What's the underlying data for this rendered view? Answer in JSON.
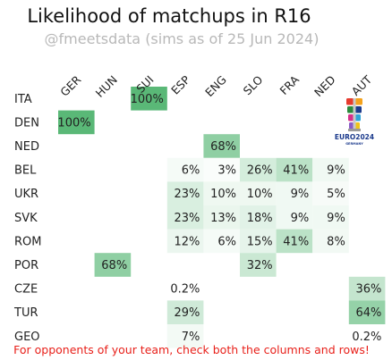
{
  "chart_data": {
    "type": "heatmap",
    "title": "Likelihood of matchups in R16",
    "subtitle": "@fmeetsdata (sims as of 25 Jun 2024)",
    "columns": [
      "GER",
      "HUN",
      "SUI",
      "ESP",
      "ENG",
      "SLO",
      "FRA",
      "NED",
      "AUT"
    ],
    "rows": [
      "ITA",
      "DEN",
      "NED",
      "BEL",
      "UKR",
      "SVK",
      "ROM",
      "POR",
      "CZE",
      "TUR",
      "GEO"
    ],
    "cells": [
      {
        "row": "ITA",
        "col": "SUI",
        "value": 100,
        "label": "100%"
      },
      {
        "row": "DEN",
        "col": "GER",
        "value": 100,
        "label": "100%"
      },
      {
        "row": "NED",
        "col": "ENG",
        "value": 68,
        "label": "68%"
      },
      {
        "row": "BEL",
        "col": "ESP",
        "value": 6,
        "label": "6%"
      },
      {
        "row": "BEL",
        "col": "ENG",
        "value": 3,
        "label": "3%"
      },
      {
        "row": "BEL",
        "col": "SLO",
        "value": 26,
        "label": "26%"
      },
      {
        "row": "BEL",
        "col": "FRA",
        "value": 41,
        "label": "41%"
      },
      {
        "row": "BEL",
        "col": "NED",
        "value": 9,
        "label": "9%"
      },
      {
        "row": "UKR",
        "col": "ESP",
        "value": 23,
        "label": "23%"
      },
      {
        "row": "UKR",
        "col": "ENG",
        "value": 10,
        "label": "10%"
      },
      {
        "row": "UKR",
        "col": "SLO",
        "value": 10,
        "label": "10%"
      },
      {
        "row": "UKR",
        "col": "FRA",
        "value": 9,
        "label": "9%"
      },
      {
        "row": "UKR",
        "col": "NED",
        "value": 5,
        "label": "5%"
      },
      {
        "row": "SVK",
        "col": "ESP",
        "value": 23,
        "label": "23%"
      },
      {
        "row": "SVK",
        "col": "ENG",
        "value": 13,
        "label": "13%"
      },
      {
        "row": "SVK",
        "col": "SLO",
        "value": 18,
        "label": "18%"
      },
      {
        "row": "SVK",
        "col": "FRA",
        "value": 9,
        "label": "9%"
      },
      {
        "row": "SVK",
        "col": "NED",
        "value": 9,
        "label": "9%"
      },
      {
        "row": "ROM",
        "col": "ESP",
        "value": 12,
        "label": "12%"
      },
      {
        "row": "ROM",
        "col": "ENG",
        "value": 6,
        "label": "6%"
      },
      {
        "row": "ROM",
        "col": "SLO",
        "value": 15,
        "label": "15%"
      },
      {
        "row": "ROM",
        "col": "FRA",
        "value": 41,
        "label": "41%"
      },
      {
        "row": "ROM",
        "col": "NED",
        "value": 8,
        "label": "8%"
      },
      {
        "row": "POR",
        "col": "HUN",
        "value": 68,
        "label": "68%"
      },
      {
        "row": "POR",
        "col": "SLO",
        "value": 32,
        "label": "32%"
      },
      {
        "row": "CZE",
        "col": "ESP",
        "value": 0.2,
        "label": "0.2%"
      },
      {
        "row": "CZE",
        "col": "AUT",
        "value": 36,
        "label": "36%"
      },
      {
        "row": "TUR",
        "col": "ESP",
        "value": 29,
        "label": "29%"
      },
      {
        "row": "TUR",
        "col": "AUT",
        "value": 64,
        "label": "64%"
      },
      {
        "row": "GEO",
        "col": "ESP",
        "value": 7,
        "label": "7%"
      },
      {
        "row": "GEO",
        "col": "AUT",
        "value": 0.2,
        "label": "0.2%"
      }
    ],
    "color_scale": {
      "low": "#ffffff",
      "high": "#5ab877"
    },
    "footnote": "For opponents of your team, check both the columns and rows!"
  },
  "logo": {
    "text": "EURO2024",
    "subtext": "GERMANY"
  }
}
